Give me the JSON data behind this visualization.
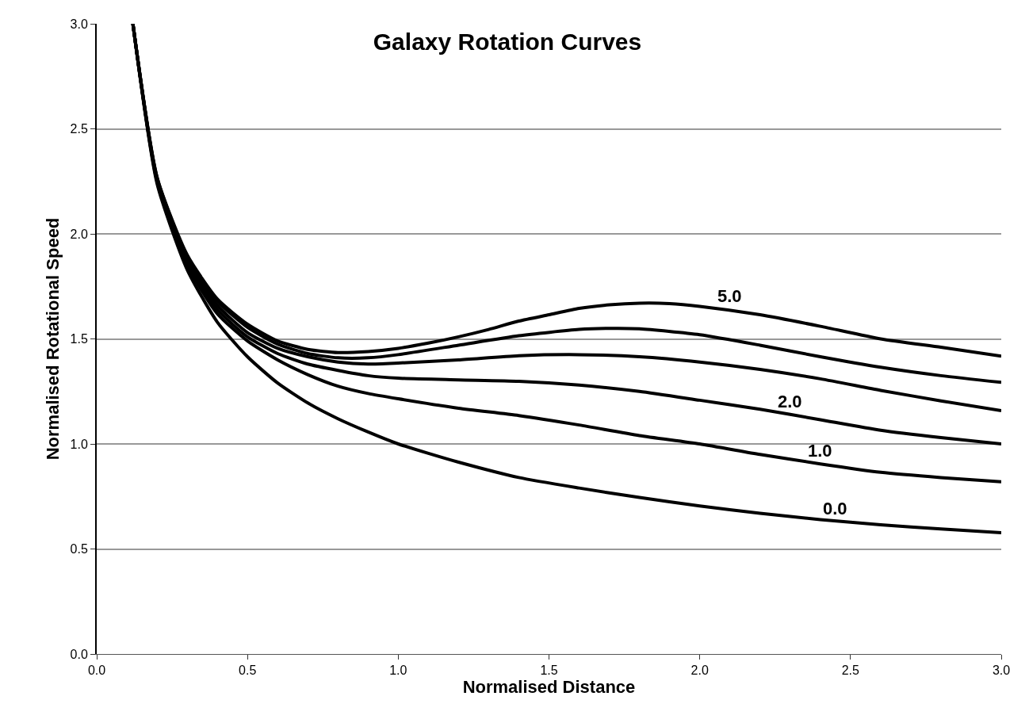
{
  "chart_data": {
    "type": "line",
    "title": "Galaxy Rotation Curves",
    "xlabel": "Normalised Distance",
    "ylabel": "Normalised Rotational Speed",
    "xlim": [
      0,
      3
    ],
    "xticks": [
      {
        "value": 0,
        "label": "0.0"
      },
      {
        "value": 0.5,
        "label": "0.5"
      },
      {
        "value": 1,
        "label": "1.0"
      },
      {
        "value": 1.5,
        "label": "1.5"
      },
      {
        "value": 2,
        "label": "2.0"
      },
      {
        "value": 2.5,
        "label": "2.5"
      },
      {
        "value": 3,
        "label": "3.0"
      }
    ],
    "ylim": [
      0,
      3
    ],
    "yticks": [
      {
        "value": 0,
        "label": "0.0"
      },
      {
        "value": 0.5,
        "label": "0.5"
      },
      {
        "value": 1,
        "label": "1.0"
      },
      {
        "value": 1.5,
        "label": "1.5"
      },
      {
        "value": 2,
        "label": "2.0"
      },
      {
        "value": 2.5,
        "label": "2.5"
      },
      {
        "value": 3,
        "label": "3.0"
      }
    ],
    "grid": "y",
    "marker": "none",
    "line_style": "solid",
    "series": [
      {
        "color": "#000000",
        "x": [
          0.12,
          0.2,
          0.3,
          0.4,
          0.5,
          0.6,
          0.7,
          0.8,
          0.9,
          1.0,
          1.1,
          1.2,
          1.4,
          1.6,
          1.8,
          2.0,
          2.2,
          2.4,
          2.6,
          2.8,
          3.0
        ],
        "values": [
          3.0,
          2.24,
          1.83,
          1.58,
          1.415,
          1.29,
          1.195,
          1.12,
          1.057,
          1.0,
          0.955,
          0.913,
          0.84,
          0.79,
          0.745,
          0.705,
          0.67,
          0.64,
          0.615,
          0.595,
          0.577
        ]
      },
      {
        "color": "#000000",
        "x": [
          0.12,
          0.2,
          0.3,
          0.4,
          0.5,
          0.6,
          0.7,
          0.8,
          0.9,
          1.0,
          1.2,
          1.4,
          1.6,
          1.8,
          2.0,
          2.2,
          2.4,
          2.6,
          2.8,
          3.0
        ],
        "values": [
          3.0,
          2.25,
          1.85,
          1.62,
          1.49,
          1.4,
          1.33,
          1.275,
          1.24,
          1.215,
          1.17,
          1.135,
          1.09,
          1.04,
          1.0,
          0.95,
          0.905,
          0.865,
          0.84,
          0.82
        ]
      },
      {
        "color": "#000000",
        "x": [
          0.12,
          0.2,
          0.3,
          0.4,
          0.5,
          0.6,
          0.7,
          0.8,
          0.9,
          1.0,
          1.2,
          1.4,
          1.6,
          1.8,
          2.0,
          2.2,
          2.4,
          2.6,
          2.8,
          3.0
        ],
        "values": [
          3.0,
          2.26,
          1.87,
          1.64,
          1.51,
          1.43,
          1.38,
          1.35,
          1.325,
          1.313,
          1.305,
          1.298,
          1.28,
          1.25,
          1.208,
          1.165,
          1.115,
          1.065,
          1.03,
          1.0
        ]
      },
      {
        "color": "#000000",
        "x": [
          0.12,
          0.2,
          0.3,
          0.4,
          0.5,
          0.6,
          0.7,
          0.8,
          0.9,
          1.0,
          1.2,
          1.4,
          1.6,
          1.8,
          2.0,
          2.2,
          2.4,
          2.6,
          2.8,
          3.0
        ],
        "values": [
          3.0,
          2.26,
          1.88,
          1.66,
          1.53,
          1.455,
          1.415,
          1.39,
          1.38,
          1.385,
          1.4,
          1.42,
          1.425,
          1.415,
          1.39,
          1.355,
          1.31,
          1.255,
          1.205,
          1.158
        ]
      },
      {
        "color": "#000000",
        "x": [
          0.12,
          0.2,
          0.3,
          0.4,
          0.5,
          0.6,
          0.7,
          0.8,
          0.9,
          1.0,
          1.2,
          1.4,
          1.6,
          1.7,
          1.8,
          2.0,
          2.2,
          2.4,
          2.6,
          2.8,
          3.0
        ],
        "values": [
          3.0,
          2.27,
          1.89,
          1.68,
          1.555,
          1.475,
          1.43,
          1.41,
          1.41,
          1.425,
          1.47,
          1.515,
          1.545,
          1.55,
          1.548,
          1.52,
          1.47,
          1.415,
          1.365,
          1.325,
          1.293
        ]
      },
      {
        "color": "#000000",
        "x": [
          0.12,
          0.2,
          0.3,
          0.4,
          0.5,
          0.6,
          0.7,
          0.8,
          0.9,
          1.0,
          1.1,
          1.2,
          1.3,
          1.4,
          1.5,
          1.6,
          1.7,
          1.8,
          1.9,
          2.0,
          2.2,
          2.4,
          2.6,
          2.8,
          3.0
        ],
        "values": [
          3.0,
          2.27,
          1.9,
          1.69,
          1.57,
          1.49,
          1.45,
          1.435,
          1.44,
          1.455,
          1.48,
          1.51,
          1.545,
          1.585,
          1.615,
          1.645,
          1.662,
          1.67,
          1.668,
          1.655,
          1.615,
          1.56,
          1.5,
          1.46,
          1.418
        ]
      }
    ],
    "annotations": [
      {
        "text": "5.0",
        "x": 2.1,
        "y": 1.64
      },
      {
        "text": "2.0",
        "x": 2.3,
        "y": 1.14
      },
      {
        "text": "1.0",
        "x": 2.4,
        "y": 0.905
      },
      {
        "text": "0.0",
        "x": 2.45,
        "y": 0.63
      }
    ]
  }
}
